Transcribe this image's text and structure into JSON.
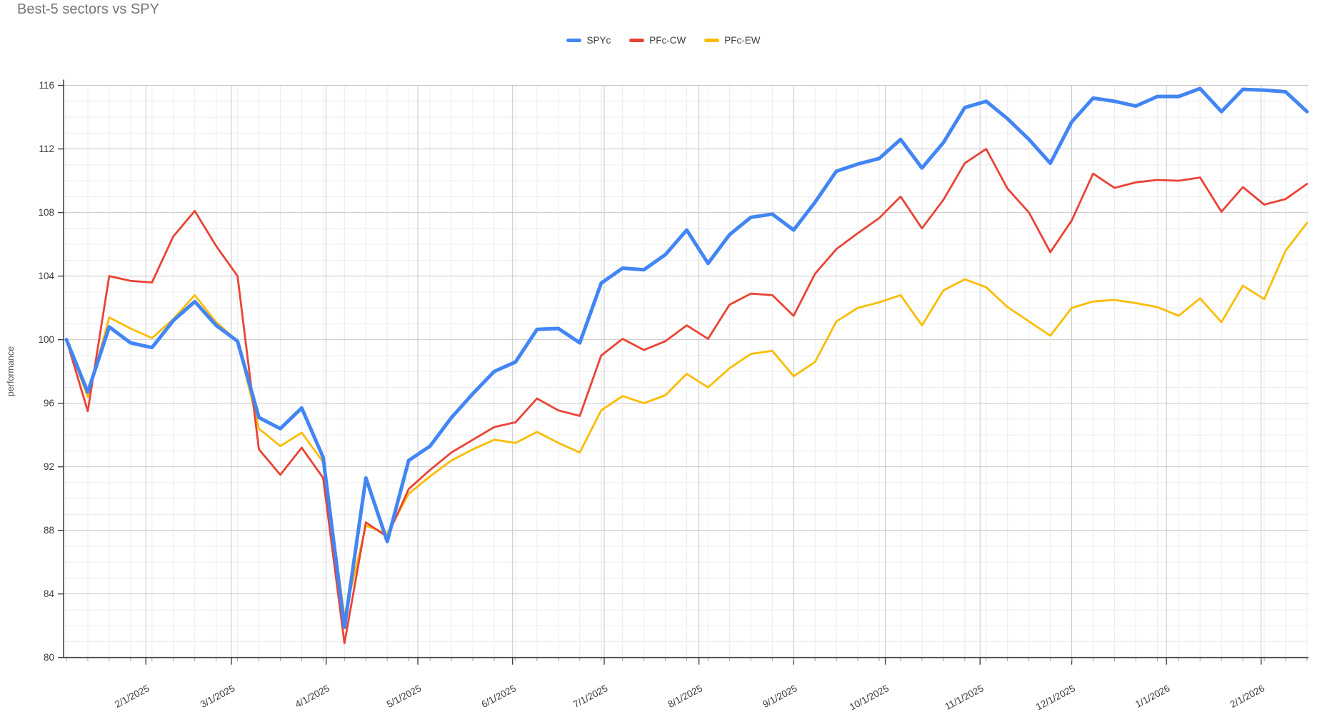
{
  "chart_data": {
    "type": "line",
    "title": "Best-5 sectors vs SPY",
    "y_label": "performance",
    "ylim": [
      80,
      116
    ],
    "y_major_step": 4,
    "y_minor_step": 1,
    "grid": true,
    "legend_position": "top-center",
    "y_tick_labels": [
      "80",
      "84",
      "88",
      "92",
      "96",
      "100",
      "104",
      "108",
      "112",
      "116"
    ],
    "x_tick_labels": [
      "2/1/2025",
      "3/1/2025",
      "4/1/2025",
      "5/1/2025",
      "6/1/2025",
      "7/1/2025",
      "8/1/2025",
      "9/1/2025",
      "10/1/2025",
      "11/1/2025",
      "12/1/2025",
      "1/1/2026",
      "2/1/2026"
    ],
    "x_dates": [
      "1/6/2025",
      "1/13/2025",
      "1/20/2025",
      "1/27/2025",
      "2/3/2025",
      "2/10/2025",
      "2/17/2025",
      "2/24/2025",
      "3/3/2025",
      "3/10/2025",
      "3/17/2025",
      "3/24/2025",
      "3/31/2025",
      "4/7/2025",
      "4/14/2025",
      "4/21/2025",
      "4/28/2025",
      "5/5/2025",
      "5/12/2025",
      "5/19/2025",
      "5/26/2025",
      "6/2/2025",
      "6/9/2025",
      "6/16/2025",
      "6/23/2025",
      "6/30/2025",
      "7/7/2025",
      "7/14/2025",
      "7/21/2025",
      "7/28/2025",
      "8/4/2025",
      "8/11/2025",
      "8/18/2025",
      "8/25/2025",
      "9/1/2025",
      "9/8/2025",
      "9/15/2025",
      "9/22/2025",
      "9/29/2025",
      "10/6/2025",
      "10/13/2025",
      "10/20/2025",
      "10/27/2025",
      "11/3/2025",
      "11/10/2025",
      "11/17/2025",
      "11/24/2025",
      "12/1/2025",
      "12/8/2025",
      "12/15/2025",
      "12/22/2025",
      "12/29/2025",
      "1/5/2026",
      "1/12/2026",
      "1/19/2026",
      "1/26/2026",
      "2/2/2026",
      "2/9/2026",
      "2/16/2026"
    ],
    "series": [
      {
        "name": "SPYc",
        "color": "#4285F4",
        "values": [
          100,
          96.7,
          100.8,
          99.8,
          99.5,
          101.2,
          102.4,
          100.9,
          99.9,
          95.1,
          94.4,
          95.7,
          92.6,
          81.9,
          91.3,
          87.3,
          92.4,
          93.3,
          95.1,
          96.6,
          98.0,
          98.6,
          100.65,
          100.7,
          99.8,
          103.55,
          104.5,
          104.4,
          105.35,
          106.9,
          104.8,
          106.6,
          107.7,
          107.9,
          106.9,
          108.65,
          110.6,
          111.05,
          111.4,
          112.6,
          110.8,
          112.4,
          114.6,
          115.0,
          113.9,
          112.6,
          111.1,
          113.7,
          115.2,
          115.0,
          114.7,
          115.3,
          115.3,
          115.8,
          114.35,
          115.75,
          115.7,
          115.6,
          114.35
        ]
      },
      {
        "name": "PFc-CW",
        "color": "#EA4335",
        "values": [
          100,
          95.5,
          104.0,
          103.7,
          103.6,
          106.5,
          108.1,
          105.9,
          104.0,
          93.1,
          91.5,
          93.2,
          91.3,
          80.9,
          88.5,
          87.6,
          90.6,
          91.8,
          92.9,
          93.7,
          94.5,
          94.8,
          96.3,
          95.55,
          95.2,
          99.0,
          100.05,
          99.35,
          99.9,
          100.9,
          100.05,
          102.2,
          102.9,
          102.8,
          101.5,
          104.15,
          105.7,
          106.7,
          107.65,
          109.0,
          107.0,
          108.8,
          111.1,
          112.0,
          109.5,
          108.0,
          105.5,
          107.5,
          110.45,
          109.55,
          109.9,
          110.05,
          110.0,
          110.2,
          108.05,
          109.6,
          108.5,
          108.85,
          109.8
        ]
      },
      {
        "name": "PFc-EW",
        "color": "#FBBC04",
        "values": [
          100,
          96.4,
          101.4,
          100.7,
          100.1,
          101.3,
          102.8,
          101.1,
          99.9,
          94.4,
          93.3,
          94.15,
          92.3,
          82.6,
          88.3,
          87.8,
          90.3,
          91.4,
          92.4,
          93.1,
          93.7,
          93.5,
          94.2,
          93.5,
          92.9,
          95.55,
          96.45,
          96.0,
          96.5,
          97.85,
          97.0,
          98.2,
          99.1,
          99.3,
          97.7,
          98.6,
          101.15,
          102.0,
          102.35,
          102.8,
          100.9,
          103.1,
          103.8,
          103.3,
          102.05,
          101.15,
          100.25,
          102.0,
          102.4,
          102.5,
          102.3,
          102.05,
          101.5,
          102.6,
          101.1,
          103.4,
          102.55,
          105.6,
          107.35
        ]
      }
    ]
  }
}
